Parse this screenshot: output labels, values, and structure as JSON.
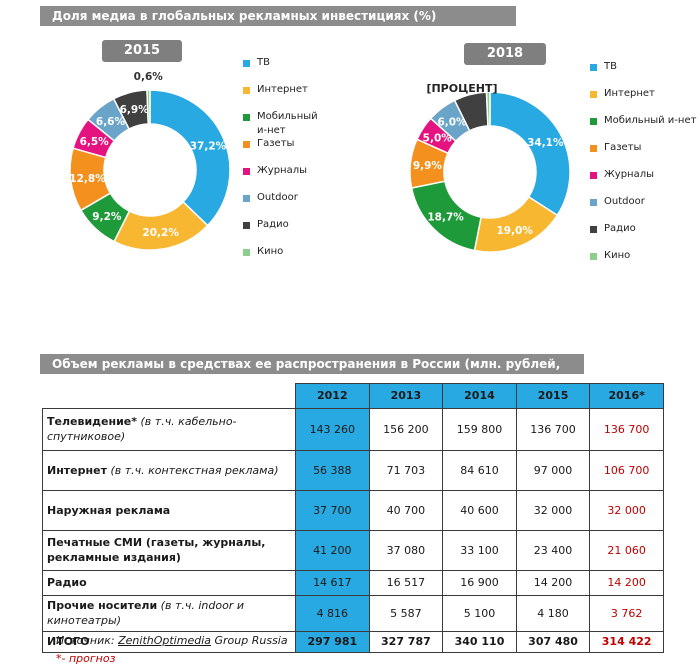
{
  "top_banner": "Доля медиа в глобальных рекламных инвестициях  (%)",
  "charts": [
    {
      "year_label": "2015",
      "slices": [
        {
          "label": "ТВ",
          "value": 37.2,
          "display": "37,2%",
          "color": "#29a9e1"
        },
        {
          "label": "Интернет",
          "value": 20.2,
          "display": "20,2%",
          "color": "#f7b731"
        },
        {
          "label": "Мобильный и-нет",
          "value": 9.2,
          "display": "9,2%",
          "color": "#1f9a3a"
        },
        {
          "label": "Газеты",
          "value": 12.8,
          "display": "12,8%",
          "color": "#f4901e"
        },
        {
          "label": "Журналы",
          "value": 6.5,
          "display": "6,5%",
          "color": "#e4137f"
        },
        {
          "label": "Outdoor",
          "value": 6.6,
          "display": "6,6%",
          "color": "#6aa4c8"
        },
        {
          "label": "Радио",
          "value": 6.9,
          "display": "6,9%",
          "color": "#404040"
        },
        {
          "label": "Кино",
          "value": 0.6,
          "display": "0,6%",
          "color": "#8ccf8c"
        }
      ]
    },
    {
      "year_label": "2018",
      "placeholder_label": "[ПРОЦЕНТ]",
      "slices": [
        {
          "label": "ТВ",
          "value": 34.1,
          "display": "34,1%",
          "color": "#29a9e1"
        },
        {
          "label": "Интернет",
          "value": 19.0,
          "display": "19,0%",
          "color": "#f7b731"
        },
        {
          "label": "Мобильный и-нет",
          "value": 18.7,
          "display": "18,7%",
          "color": "#1f9a3a"
        },
        {
          "label": "Газеты",
          "value": 9.9,
          "display": "9,9%",
          "color": "#f4901e"
        },
        {
          "label": "Журналы",
          "value": 5.0,
          "display": "5,0%",
          "color": "#e4137f"
        },
        {
          "label": "Outdoor",
          "value": 6.0,
          "display": "6,0%",
          "color": "#6aa4c8"
        },
        {
          "label": "Радио",
          "value": 6.6,
          "display": "",
          "color": "#404040"
        },
        {
          "label": "Кино",
          "value": 0.7,
          "display": "",
          "color": "#8ccf8c"
        }
      ]
    }
  ],
  "legend": [
    {
      "label": "ТВ",
      "color": "#29a9e1"
    },
    {
      "label": "Интернет",
      "color": "#f7b731"
    },
    {
      "label": "Мобильный и-нет",
      "color": "#1f9a3a"
    },
    {
      "label": "Газеты",
      "color": "#f4901e"
    },
    {
      "label": "Журналы",
      "color": "#e4137f"
    },
    {
      "label": "Outdoor",
      "color": "#6aa4c8"
    },
    {
      "label": "Радио",
      "color": "#404040"
    },
    {
      "label": "Кино",
      "color": "#8ccf8c"
    }
  ],
  "table_banner": "Объем рекламы в средствах ее распространения в России (млн. рублей, без НДС)",
  "table": {
    "years": [
      "2012",
      "2013",
      "2014",
      "2015",
      "2016*"
    ],
    "rows": [
      {
        "label": "Телевидение*",
        "note": " (в т.ч.  кабельно-спутниковое)",
        "values": [
          "143 260",
          "156 200",
          "159 800",
          "136 700",
          "136 700"
        ]
      },
      {
        "label": "Интернет",
        "note": " (в т.ч.  контекстная реклама)",
        "values": [
          "56 388",
          "71 703",
          "84 610",
          "97 000",
          "106 700"
        ]
      },
      {
        "label": "Наружная реклама",
        "note": "",
        "values": [
          "37 700",
          "40 700",
          "40 600",
          "32 000",
          "32 000"
        ]
      },
      {
        "label": "Печатные СМИ (газеты, журналы, рекламные издания)",
        "note": "",
        "values": [
          "41 200",
          "37 080",
          "33 100",
          "23 400",
          "21 060"
        ]
      },
      {
        "label": "Радио",
        "note": "",
        "values": [
          "14 617",
          "16 517",
          "16 900",
          "14 200",
          "14 200"
        ]
      },
      {
        "label": "Прочие носители",
        "note": " (в т.ч. indoor и кинотеатры)",
        "values": [
          "4 816",
          "5 587",
          "5 100",
          "4 180",
          "3 762"
        ]
      }
    ],
    "total": {
      "label": "ИТОГО",
      "values": [
        "297 981",
        "327 787",
        "340 110",
        "307 480",
        "314 422"
      ]
    }
  },
  "source_prefix": "Источник: ",
  "source_name": "ZenithOptimedia",
  "source_suffix": " Group Russia",
  "forecast_note": "*- прогноз",
  "chart_data": [
    {
      "type": "pie",
      "title": "2015",
      "categories": [
        "ТВ",
        "Интернет",
        "Мобильный и-нет",
        "Газеты",
        "Журналы",
        "Outdoor",
        "Радио",
        "Кино"
      ],
      "values": [
        37.2,
        20.2,
        9.2,
        12.8,
        6.5,
        6.6,
        6.9,
        0.6
      ]
    },
    {
      "type": "pie",
      "title": "2018",
      "categories": [
        "ТВ",
        "Интернет",
        "Мобильный и-нет",
        "Газеты",
        "Журналы",
        "Outdoor",
        "Радио",
        "Кино"
      ],
      "values": [
        34.1,
        19.0,
        18.7,
        9.9,
        5.0,
        6.0,
        6.6,
        0.7
      ]
    },
    {
      "type": "table",
      "title": "Объем рекламы в средствах ее распространения в России (млн. рублей, без НДС)",
      "columns": [
        "2012",
        "2013",
        "2014",
        "2015",
        "2016*"
      ],
      "rows": [
        "Телевидение*",
        "Интернет",
        "Наружная реклама",
        "Печатные СМИ",
        "Радио",
        "Прочие носители",
        "ИТОГО"
      ],
      "values": [
        [
          143260,
          156200,
          159800,
          136700,
          136700
        ],
        [
          56388,
          71703,
          84610,
          97000,
          106700
        ],
        [
          37700,
          40700,
          40600,
          32000,
          32000
        ],
        [
          41200,
          37080,
          33100,
          23400,
          21060
        ],
        [
          14617,
          16517,
          16900,
          14200,
          14200
        ],
        [
          4816,
          5587,
          5100,
          4180,
          3762
        ],
        [
          297981,
          327787,
          340110,
          307480,
          314422
        ]
      ]
    }
  ]
}
